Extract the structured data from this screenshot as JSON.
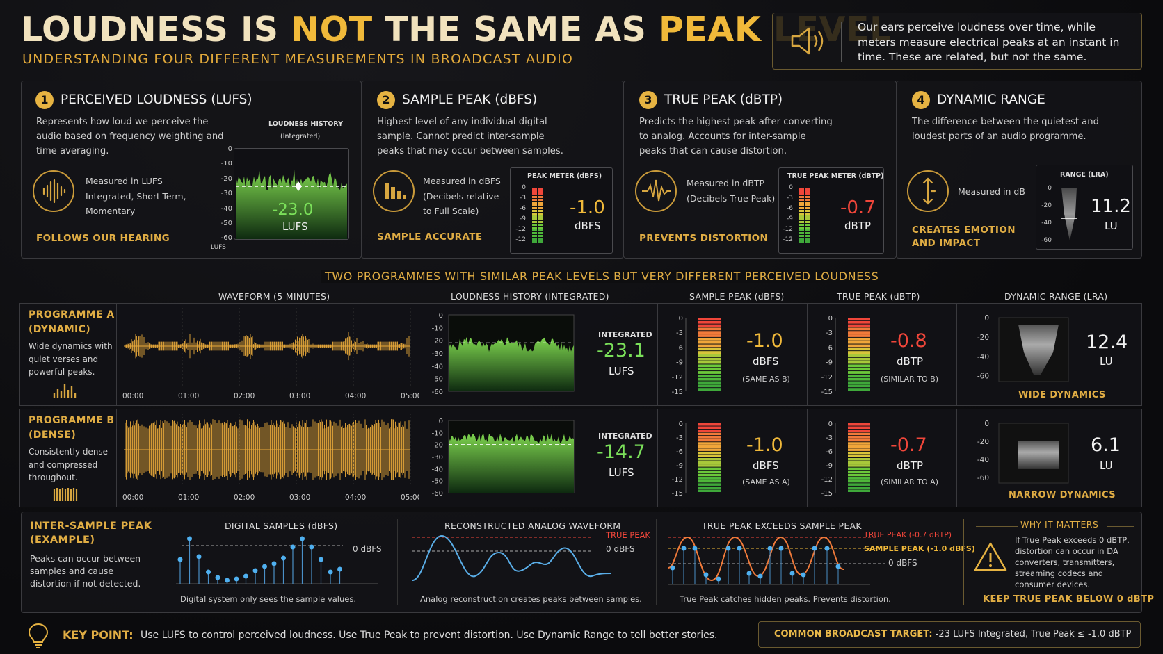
{
  "header": {
    "title_a": "LOUDNESS IS ",
    "title_b": "NOT",
    "title_c": " THE SAME AS ",
    "title_d": "PEAK LEVEL",
    "subtitle": "UNDERSTANDING FOUR DIFFERENT MEASUREMENTS IN BROADCAST AUDIO",
    "note": "Our ears perceive loudness over time, while meters measure electrical peaks at an instant in time. These are related, but not the same."
  },
  "cards": [
    {
      "num": "1",
      "title": "PERCEIVED LOUDNESS (LUFS)",
      "desc": "Represents how loud we perceive the audio based on frequency weighting and time averaging.",
      "measured": "Measured in LUFS",
      "measured2": "Integrated, Short-Term, Momentary",
      "tag": "FOLLOWS OUR HEARING",
      "meter_title": "LOUDNESS HISTORY",
      "meter_sub": "(Integrated)",
      "value": "-23.0",
      "unit": "LUFS",
      "axis_unit": "LUFS",
      "ticks": [
        "0",
        "-10",
        "-20",
        "-30",
        "-40",
        "-50",
        "-60"
      ]
    },
    {
      "num": "2",
      "title": "SAMPLE PEAK (dBFS)",
      "desc": "Highest level of any individual digital sample. Cannot predict inter-sample peaks that may occur between samples.",
      "measured": "Measured in dBFS",
      "measured2": "(Decibels relative to Full Scale)",
      "tag": "SAMPLE ACCURATE",
      "meter_title": "PEAK METER (dBFS)",
      "value": "-1.0",
      "unit": "dBFS",
      "ticks": [
        "0",
        "-3",
        "-6",
        "-9",
        "-12",
        "-12"
      ]
    },
    {
      "num": "3",
      "title": "TRUE PEAK (dBTP)",
      "desc": "Predicts the highest peak after converting to analog. Accounts for inter-sample peaks that can cause distortion.",
      "measured": "Measured in dBTP",
      "measured2": "(Decibels True Peak)",
      "tag": "PREVENTS DISTORTION",
      "meter_title": "TRUE PEAK METER (dBTP)",
      "value": "-0.7",
      "unit": "dBTP",
      "ticks": [
        "0",
        "-3",
        "-6",
        "-9",
        "-12",
        "-12"
      ]
    },
    {
      "num": "4",
      "title": "DYNAMIC RANGE",
      "desc": "The difference between the quietest and loudest parts of an audio programme.",
      "measured": "Measured in dB",
      "tag1": "CREATES EMOTION",
      "tag2": "AND IMPACT",
      "meter_title": "RANGE (LRA)",
      "value": "11.2",
      "unit": "LU",
      "ticks": [
        "0",
        "-20",
        "-40",
        "-60"
      ]
    }
  ],
  "section_title": "TWO PROGRAMMES WITH SIMILAR PEAK LEVELS BUT VERY DIFFERENT PERCEIVED LOUDNESS",
  "columns": [
    "WAVEFORM (5 MINUTES)",
    "LOUDNESS HISTORY (INTEGRATED)",
    "SAMPLE PEAK (dBFS)",
    "TRUE PEAK (dBTP)",
    "DYNAMIC RANGE (LRA)"
  ],
  "time_ticks": [
    "00:00",
    "01:00",
    "02:00",
    "03:00",
    "04:00",
    "05:00"
  ],
  "loud_ticks": [
    "0",
    "-10",
    "-20",
    "-30",
    "-40",
    "-50",
    "-60"
  ],
  "peak_ticks": [
    "0",
    "-3",
    "-6",
    "-9",
    "-12",
    "-15"
  ],
  "lra_ticks": [
    "0",
    "-20",
    "-40",
    "-60"
  ],
  "programmes": [
    {
      "title1": "PROGRAMME A",
      "title2": "(DYNAMIC)",
      "desc": "Wide dynamics with quiet verses and powerful peaks.",
      "integrated_label": "INTEGRATED",
      "lufs": "-23.1",
      "lufs_unit": "LUFS",
      "sp": "-1.0",
      "sp_unit": "dBFS",
      "sp_note": "(SAME AS B)",
      "tp": "-0.8",
      "tp_unit": "dBTP",
      "tp_note": "(SIMILAR TO B)",
      "lra": "12.4",
      "lra_unit": "LU",
      "lra_tag": "WIDE DYNAMICS"
    },
    {
      "title1": "PROGRAMME B",
      "title2": "(DENSE)",
      "desc": "Consistently dense and compressed throughout.",
      "integrated_label": "INTEGRATED",
      "lufs": "-14.7",
      "lufs_unit": "LUFS",
      "sp": "-1.0",
      "sp_unit": "dBFS",
      "sp_note": "(SAME AS A)",
      "tp": "-0.7",
      "tp_unit": "dBTP",
      "tp_note": "(SIMILAR TO A)",
      "lra": "6.1",
      "lra_unit": "LU",
      "lra_tag": "NARROW DYNAMICS"
    }
  ],
  "isp": {
    "title1": "INTER-SAMPLE PEAK",
    "title2": "(EXAMPLE)",
    "desc": "Peaks can occur between samples and cause distortion if not detected.",
    "p1_title": "DIGITAL SAMPLES (dBFS)",
    "p1_ref": "0 dBFS",
    "p1_cap": "Digital system only sees the sample values.",
    "p2_title": "RECONSTRUCTED ANALOG WAVEFORM",
    "p2_tp": "TRUE PEAK",
    "p2_ref": "0 dBFS",
    "p2_cap": "Analog reconstruction creates peaks between samples.",
    "p3_title": "TRUE PEAK EXCEEDS SAMPLE PEAK",
    "p3_tp": "TRUE PEAK (-0.7 dBTP)",
    "p3_sp": "SAMPLE PEAK (-1.0 dBFS)",
    "p3_ref": "0 dBFS",
    "p3_cap": "True Peak catches hidden peaks. Prevents distortion.",
    "why_title": "WHY IT MATTERS",
    "why_desc": "If True Peak exceeds 0 dBTP, distortion can occur in DA converters, transmitters, streaming codecs and consumer devices.",
    "why_tag": "KEEP TRUE PEAK BELOW 0 dBTP"
  },
  "footer": {
    "key_label": "KEY POINT:",
    "key_text": "Use LUFS to control perceived loudness. Use True Peak to prevent distortion. Use Dynamic Range to tell better stories.",
    "target_label": "COMMON BROADCAST TARGET:",
    "target_text": " -23 LUFS Integrated, True Peak ≤ -1.0 dBTP"
  },
  "colors": {
    "gold": "#e8b84a",
    "green": "#6ccf4a",
    "red": "#f0463a",
    "wave": "#e8a93a"
  }
}
